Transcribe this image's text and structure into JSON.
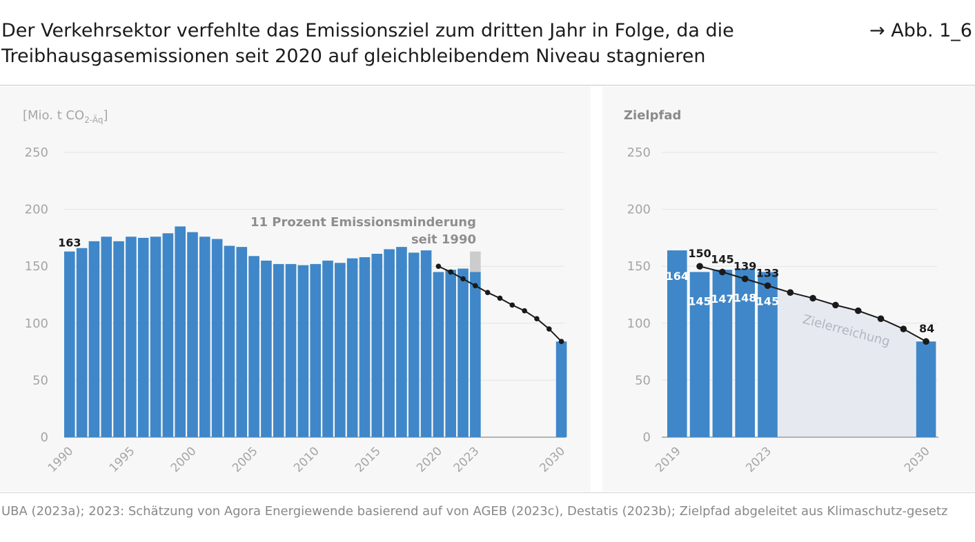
{
  "header": {
    "title": "Der Verkehrsektor verfehlte das Emissionsziel zum dritten Jahr in Folge, da die Treibhausgasemissionen seit 2020 auf gleichbleibendem Niveau stagnieren",
    "figure_ref": "→ Abb. 1_6"
  },
  "source": "UBA (2023a); 2023: Schätzung von Agora Energiewende basierend auf von AGEB (2023c), Destatis (2023b); Zielpfad abgeleitet aus Klimaschutz-gesetz",
  "colors": {
    "bar": "#3f87c8",
    "estimate_bar": "#cccccc",
    "target_line": "#1a1a1a",
    "target_area": "#e6eaf0",
    "grid": "#e3e3e3",
    "axis_text": "#a5a5a5",
    "panel_bg": "#f7f7f7"
  },
  "chart_data": [
    {
      "type": "bar",
      "unit_label_main": "[Mio. t CO",
      "unit_label_sub": "2-Äq",
      "unit_label_end": "]",
      "ylim": [
        0,
        250
      ],
      "yticks": [
        "0",
        "50",
        "100",
        "150",
        "200",
        "250"
      ],
      "x_tick_labels": [
        "1990",
        "1995",
        "2000",
        "2005",
        "2010",
        "2015",
        "2020",
        "2023",
        "2030"
      ],
      "x_tick_years": [
        1990,
        1995,
        2000,
        2005,
        2010,
        2015,
        2020,
        2023,
        2030
      ],
      "years": [
        1990,
        1991,
        1992,
        1993,
        1994,
        1995,
        1996,
        1997,
        1998,
        1999,
        2000,
        2001,
        2002,
        2003,
        2004,
        2005,
        2006,
        2007,
        2008,
        2009,
        2010,
        2011,
        2012,
        2013,
        2014,
        2015,
        2016,
        2017,
        2018,
        2019,
        2020,
        2021,
        2022,
        2023
      ],
      "values": [
        163,
        166,
        172,
        176,
        172,
        176,
        175,
        176,
        179,
        185,
        180,
        176,
        174,
        168,
        167,
        159,
        155,
        152,
        152,
        151,
        152,
        155,
        153,
        157,
        158,
        161,
        165,
        167,
        162,
        164,
        145,
        147,
        148,
        145
      ],
      "estimate_increment_2023": {
        "year": 2023,
        "from": 145,
        "to": 163
      },
      "bar_2030": {
        "year": 2030,
        "value": 84
      },
      "target_path": {
        "x": [
          2020,
          2021,
          2022,
          2023,
          2024,
          2025,
          2026,
          2027,
          2028,
          2029,
          2030
        ],
        "y": [
          150,
          145,
          139,
          133,
          127,
          122,
          116,
          111,
          104,
          95,
          84
        ]
      },
      "value_label": {
        "year": 1990,
        "text": "163"
      },
      "annotation": [
        "11 Prozent Emissionsminderung",
        "seit 1990"
      ]
    },
    {
      "type": "bar",
      "title": "Zielpfad",
      "ylim": [
        0,
        250
      ],
      "yticks": [
        "0",
        "50",
        "100",
        "150",
        "200",
        "250"
      ],
      "x_tick_labels": [
        "2019",
        "2023",
        "2030"
      ],
      "x_tick_years": [
        2019,
        2023,
        2030
      ],
      "bars": [
        {
          "year": 2019,
          "value": 164,
          "label": "164"
        },
        {
          "year": 2020,
          "value": 145,
          "label": "145"
        },
        {
          "year": 2021,
          "value": 147,
          "label": "147"
        },
        {
          "year": 2022,
          "value": 148,
          "label": "148"
        },
        {
          "year": 2023,
          "value": 145,
          "label": "145"
        },
        {
          "year": 2030,
          "value": 84,
          "label": ""
        }
      ],
      "target_path": {
        "x": [
          2020,
          2021,
          2022,
          2023,
          2024,
          2025,
          2026,
          2027,
          2028,
          2029,
          2030
        ],
        "y": [
          150,
          145,
          139,
          133,
          127,
          122,
          116,
          111,
          104,
          95,
          84
        ]
      },
      "target_labels": [
        {
          "year": 2020,
          "text": "150"
        },
        {
          "year": 2021,
          "text": "145"
        },
        {
          "year": 2022,
          "text": "139"
        },
        {
          "year": 2023,
          "text": "133"
        },
        {
          "year": 2030,
          "text": "84"
        }
      ],
      "area_label": "Zielerreichung"
    }
  ]
}
